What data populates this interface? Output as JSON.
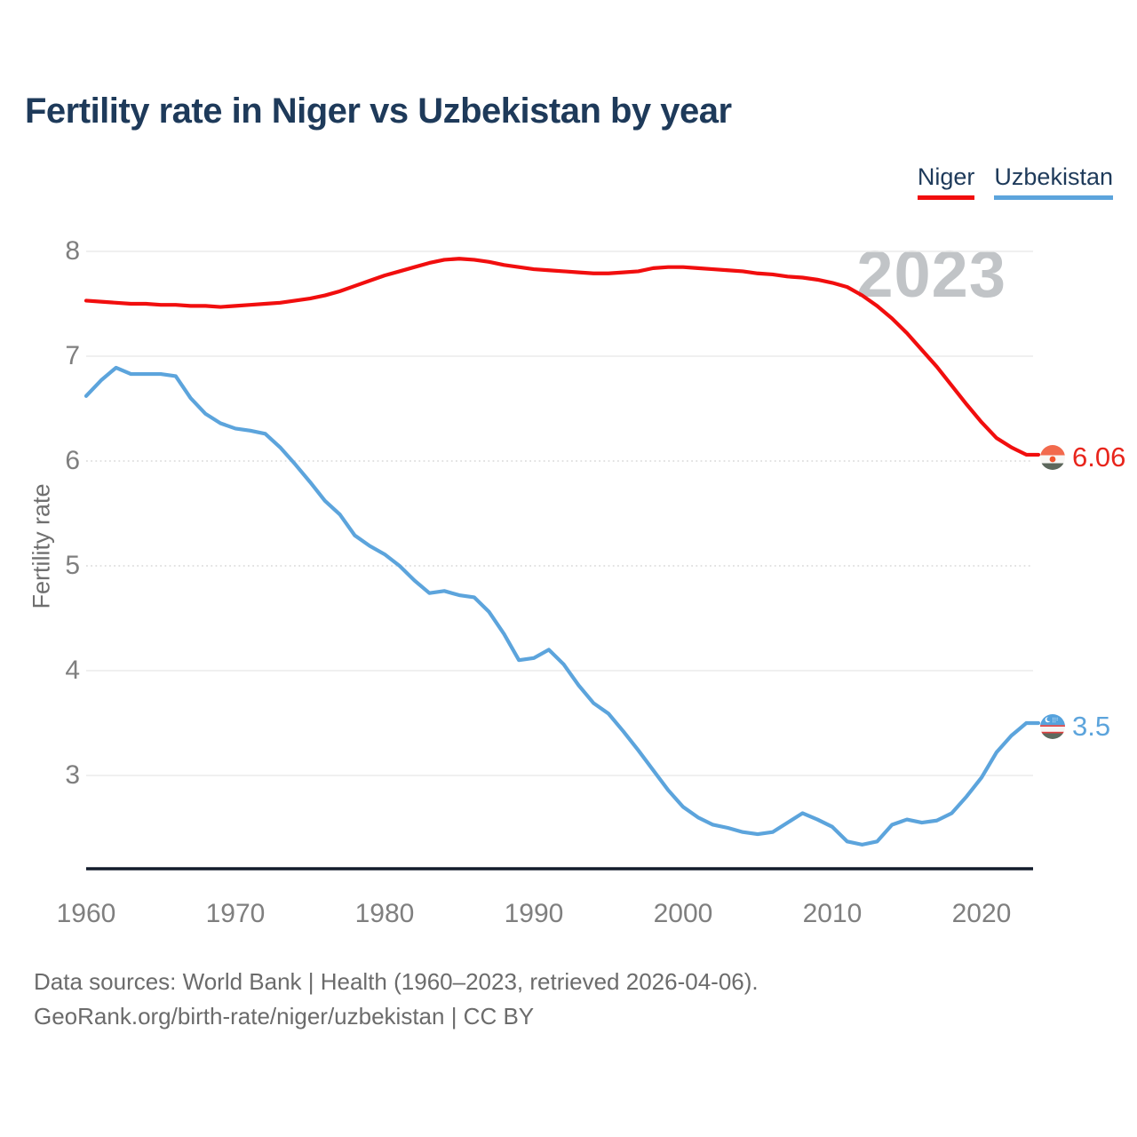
{
  "title": "Fertility rate in Niger vs Uzbekistan by year",
  "watermark": "2023",
  "legend": [
    {
      "label": "Niger",
      "color": "#f10e0e"
    },
    {
      "label": "Uzbekistan",
      "color": "#5ca4dc"
    }
  ],
  "y_axis": {
    "label": "Fertility rate",
    "ticks": [
      8,
      7,
      6,
      5,
      4,
      3
    ]
  },
  "x_axis": {
    "ticks": [
      1960,
      1970,
      1980,
      1990,
      2000,
      2010,
      2020
    ]
  },
  "end_labels": [
    {
      "series": "Niger",
      "value": "6.06",
      "flag": "niger-flag"
    },
    {
      "series": "Uzbekistan",
      "value": "3.5",
      "flag": "uzbekistan-flag"
    }
  ],
  "footer": {
    "line1": "Data sources: World Bank | Health (1960–2023, retrieved 2026-04-06).",
    "line2": "GeoRank.org/birth-rate/niger/uzbekistan | CC BY"
  },
  "chart_data": {
    "type": "line",
    "title": "Fertility rate in Niger vs Uzbekistan by year",
    "xlabel": "",
    "ylabel": "Fertility rate",
    "xlim": [
      1960,
      2023
    ],
    "ylim": [
      2.1,
      8.35
    ],
    "grid": "horizontal",
    "legend_position": "top-right",
    "x": [
      1960,
      1961,
      1962,
      1963,
      1964,
      1965,
      1966,
      1967,
      1968,
      1969,
      1970,
      1971,
      1972,
      1973,
      1974,
      1975,
      1976,
      1977,
      1978,
      1979,
      1980,
      1981,
      1982,
      1983,
      1984,
      1985,
      1986,
      1987,
      1988,
      1989,
      1990,
      1991,
      1992,
      1993,
      1994,
      1995,
      1996,
      1997,
      1998,
      1999,
      2000,
      2001,
      2002,
      2003,
      2004,
      2005,
      2006,
      2007,
      2008,
      2009,
      2010,
      2011,
      2012,
      2013,
      2014,
      2015,
      2016,
      2017,
      2018,
      2019,
      2020,
      2021,
      2022,
      2023
    ],
    "series": [
      {
        "name": "Niger",
        "color": "#f10e0e",
        "values": [
          7.53,
          7.52,
          7.51,
          7.5,
          7.5,
          7.49,
          7.49,
          7.48,
          7.48,
          7.47,
          7.48,
          7.49,
          7.5,
          7.51,
          7.53,
          7.55,
          7.58,
          7.62,
          7.67,
          7.72,
          7.77,
          7.81,
          7.85,
          7.89,
          7.92,
          7.93,
          7.92,
          7.9,
          7.87,
          7.85,
          7.83,
          7.82,
          7.81,
          7.8,
          7.79,
          7.79,
          7.8,
          7.81,
          7.84,
          7.85,
          7.85,
          7.84,
          7.83,
          7.82,
          7.81,
          7.79,
          7.78,
          7.76,
          7.75,
          7.73,
          7.7,
          7.66,
          7.58,
          7.48,
          7.36,
          7.22,
          7.06,
          6.9,
          6.72,
          6.54,
          6.37,
          6.22,
          6.13,
          6.06
        ]
      },
      {
        "name": "Uzbekistan",
        "color": "#5ca4dc",
        "values": [
          6.62,
          6.77,
          6.89,
          6.83,
          6.83,
          6.83,
          6.81,
          6.6,
          6.45,
          6.36,
          6.31,
          6.29,
          6.26,
          6.13,
          5.97,
          5.8,
          5.62,
          5.49,
          5.29,
          5.19,
          5.11,
          5.0,
          4.86,
          4.74,
          4.76,
          4.72,
          4.7,
          4.56,
          4.35,
          4.1,
          4.12,
          4.2,
          4.06,
          3.86,
          3.69,
          3.59,
          3.42,
          3.24,
          3.05,
          2.86,
          2.7,
          2.6,
          2.53,
          2.5,
          2.46,
          2.44,
          2.46,
          2.55,
          2.64,
          2.58,
          2.51,
          2.37,
          2.34,
          2.37,
          2.53,
          2.58,
          2.55,
          2.57,
          2.64,
          2.8,
          2.98,
          3.22,
          3.38,
          3.5
        ]
      }
    ]
  }
}
